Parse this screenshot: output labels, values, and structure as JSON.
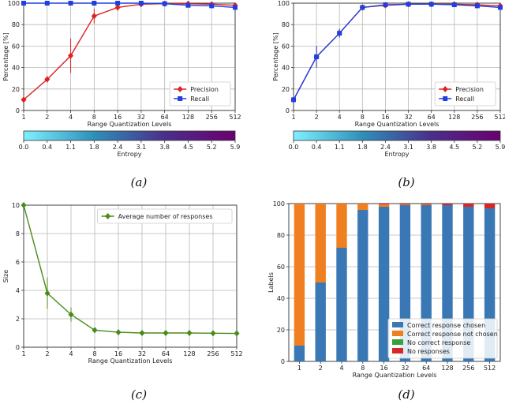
{
  "captions": [
    "(a)",
    "(b)",
    "(c)",
    "(d)"
  ],
  "colorbar": {
    "label": "Entropy",
    "ticks": [
      "0.0",
      "0.4",
      "1.1",
      "1.8",
      "2.4",
      "3.1",
      "3.8",
      "4.5",
      "5.2",
      "5.9"
    ],
    "colors": [
      "#7ff0ff",
      "#2f8fb8",
      "#4a2f8a",
      "#6a006e"
    ]
  },
  "chart_data": [
    {
      "id": "a",
      "type": "line",
      "categories": [
        "1",
        "2",
        "4",
        "8",
        "16",
        "32",
        "64",
        "128",
        "256",
        "512"
      ],
      "xlabel": "Range Quantization Levels",
      "ylabel": "Percentage [%]",
      "ylim": [
        0,
        100
      ],
      "yticks": [
        0,
        20,
        40,
        60,
        80,
        100
      ],
      "grid": true,
      "legend": "lower-right",
      "series": [
        {
          "name": "Precision",
          "color": "#e02020",
          "marker": "diamond",
          "values": [
            10,
            29,
            51,
            88,
            96,
            99,
            99.5,
            99.5,
            99,
            98
          ],
          "errors": [
            1,
            3,
            16,
            7,
            3,
            1,
            1,
            1,
            1,
            2
          ]
        },
        {
          "name": "Recall",
          "color": "#1f3fe0",
          "marker": "square",
          "values": [
            100,
            100,
            100,
            100,
            100,
            100,
            99.5,
            98,
            97.5,
            96
          ],
          "errors": [
            0,
            0,
            0,
            0,
            0,
            0,
            0.5,
            1,
            1.5,
            2
          ]
        }
      ]
    },
    {
      "id": "b",
      "type": "line",
      "categories": [
        "1",
        "2",
        "4",
        "8",
        "16",
        "32",
        "64",
        "128",
        "256",
        "512"
      ],
      "xlabel": "Range Quantization Levels",
      "ylabel": "Percentage [%]",
      "ylim": [
        0,
        100
      ],
      "yticks": [
        0,
        20,
        40,
        60,
        80,
        100
      ],
      "grid": true,
      "legend": "lower-right",
      "series": [
        {
          "name": "Precision",
          "color": "#e02020",
          "marker": "diamond",
          "values": [
            10,
            50,
            72,
            96,
            98,
            99,
            99,
            99,
            98.5,
            97.5
          ],
          "errors": [
            1,
            10,
            4,
            1,
            1,
            0.5,
            0.5,
            1,
            1,
            2
          ]
        },
        {
          "name": "Recall",
          "color": "#1f3fe0",
          "marker": "square",
          "values": [
            10,
            50,
            72,
            96,
            98.5,
            99,
            99,
            98.5,
            97.5,
            96
          ],
          "errors": [
            1,
            10,
            4,
            1,
            1,
            0.5,
            0.5,
            1,
            1.5,
            2
          ]
        }
      ]
    },
    {
      "id": "c",
      "type": "line",
      "categories": [
        "1",
        "2",
        "4",
        "8",
        "16",
        "32",
        "64",
        "128",
        "256",
        "512"
      ],
      "xlabel": "Range Quantization Levels",
      "ylabel": "Size",
      "ylim": [
        0,
        10
      ],
      "yticks": [
        0,
        2,
        4,
        6,
        8,
        10
      ],
      "grid": true,
      "legend": "upper-right",
      "series": [
        {
          "name": "Average number of responses",
          "color": "#4a8a1a",
          "marker": "diamond",
          "values": [
            10,
            3.8,
            2.3,
            1.2,
            1.05,
            1.0,
            1.0,
            1.0,
            0.98,
            0.97
          ],
          "errors": [
            0,
            1.1,
            0.5,
            0.1,
            0.05,
            0.03,
            0.02,
            0.02,
            0.02,
            0.02
          ]
        }
      ]
    },
    {
      "id": "d",
      "type": "bar",
      "stacked": true,
      "categories": [
        "1",
        "2",
        "4",
        "8",
        "16",
        "32",
        "64",
        "128",
        "256",
        "512"
      ],
      "xlabel": "Range Quantization Levels",
      "ylabel": "Labels",
      "ylim": [
        0,
        100
      ],
      "yticks": [
        0,
        20,
        40,
        60,
        80,
        100
      ],
      "grid": true,
      "legend": "lower-right",
      "series": [
        {
          "name": "Correct response chosen",
          "color": "#3a78b5",
          "values": [
            10,
            50,
            72,
            96,
            98,
            99,
            99,
            99,
            98,
            97
          ]
        },
        {
          "name": "Correct response not chosen",
          "color": "#f07f22",
          "values": [
            90,
            50,
            28,
            4,
            1.5,
            0.5,
            0.5,
            0,
            0,
            0
          ]
        },
        {
          "name": "No correct response",
          "color": "#3aa03a",
          "values": [
            0,
            0,
            0,
            0,
            0,
            0,
            0,
            0,
            0,
            0
          ]
        },
        {
          "name": "No responses",
          "color": "#d62728",
          "values": [
            0,
            0,
            0,
            0,
            0.5,
            0.5,
            0.5,
            1,
            2,
            3
          ]
        }
      ]
    }
  ]
}
